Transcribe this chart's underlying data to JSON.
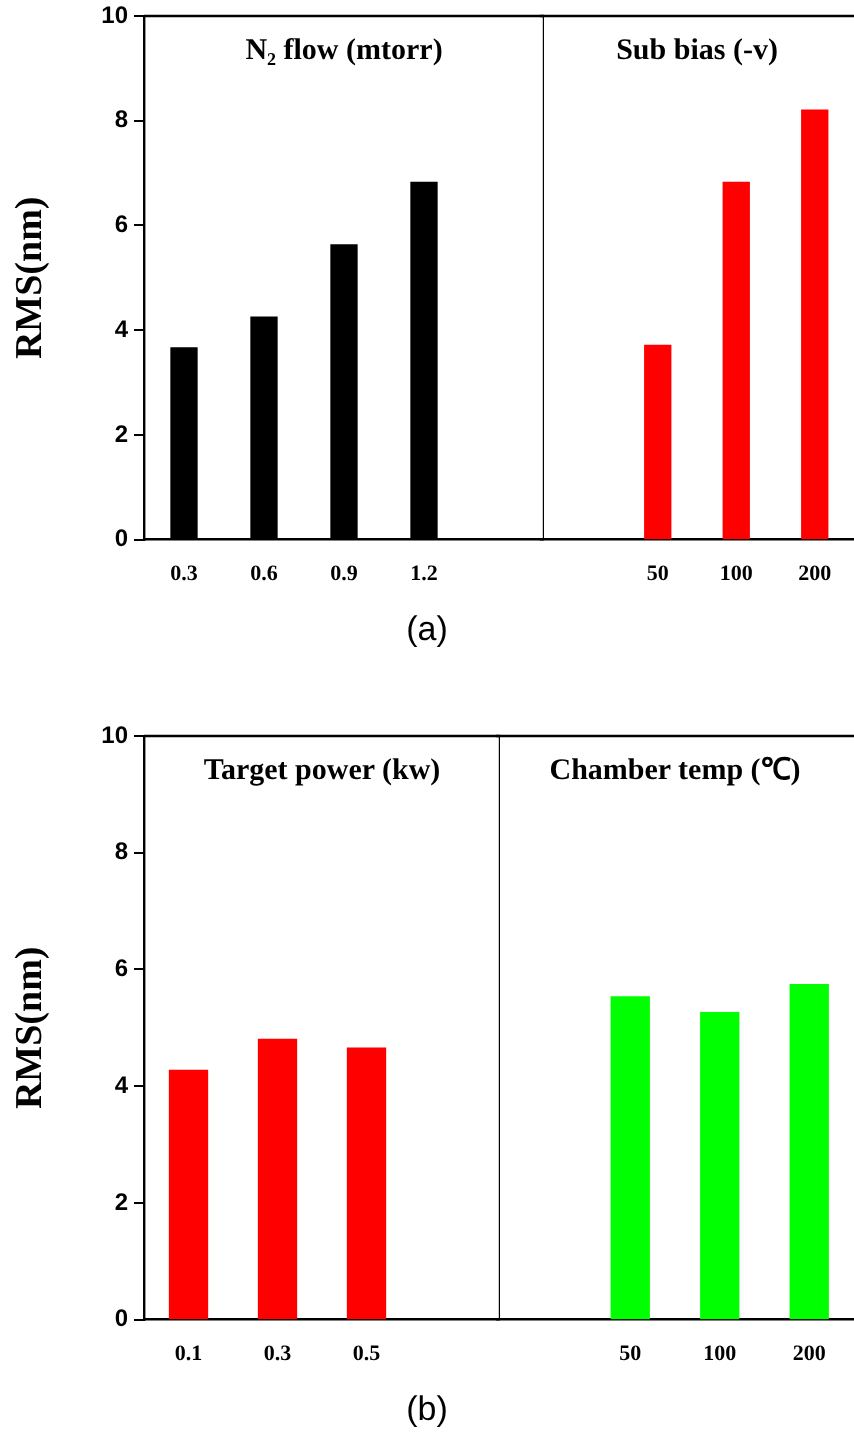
{
  "chart_data": [
    {
      "type": "bar",
      "title": "N₂ flow (mtorr)",
      "ylabel": "RMS(nm)",
      "categories": [
        "0.3",
        "0.6",
        "0.9",
        "1.2",
        null
      ],
      "values": [
        3.66,
        4.25,
        5.63,
        6.82,
        null
      ],
      "color": "#000000",
      "ylim": [
        0,
        10
      ],
      "yticks": [
        0,
        2,
        4,
        6,
        8,
        10
      ],
      "grid": false,
      "legend": false,
      "annotations": [
        "(a)"
      ]
    },
    {
      "type": "bar",
      "title": "Sub bias (-v)",
      "categories": [
        null,
        "50",
        "100",
        "200"
      ],
      "values": [
        null,
        3.71,
        6.82,
        8.2
      ],
      "color": "#ff0000",
      "ylim": [
        0,
        10
      ],
      "yticks": [
        0,
        2,
        4,
        6,
        8,
        10
      ],
      "tick_labels": "x",
      "grid": false,
      "legend": false
    },
    {
      "type": "bar",
      "title": "Target power (kw)",
      "ylabel": "RMS(nm)",
      "categories": [
        "0.1",
        "0.3",
        "0.5",
        null
      ],
      "values": [
        4.27,
        4.8,
        4.65,
        null
      ],
      "color": "#ff0000",
      "ylim": [
        0,
        10
      ],
      "yticks": [
        0,
        2,
        4,
        6,
        8,
        10
      ],
      "grid": false,
      "legend": false,
      "annotations": [
        "(b)"
      ]
    },
    {
      "type": "bar",
      "title": "Chamber temp (℃)",
      "categories": [
        null,
        "50",
        "100",
        "200"
      ],
      "values": [
        null,
        5.53,
        5.26,
        5.74
      ],
      "color": "#00ff00",
      "ylim": [
        0,
        10
      ],
      "yticks": [
        0,
        2,
        4,
        6,
        8,
        10
      ],
      "tick_labels": "x",
      "grid": false,
      "legend": false
    }
  ]
}
